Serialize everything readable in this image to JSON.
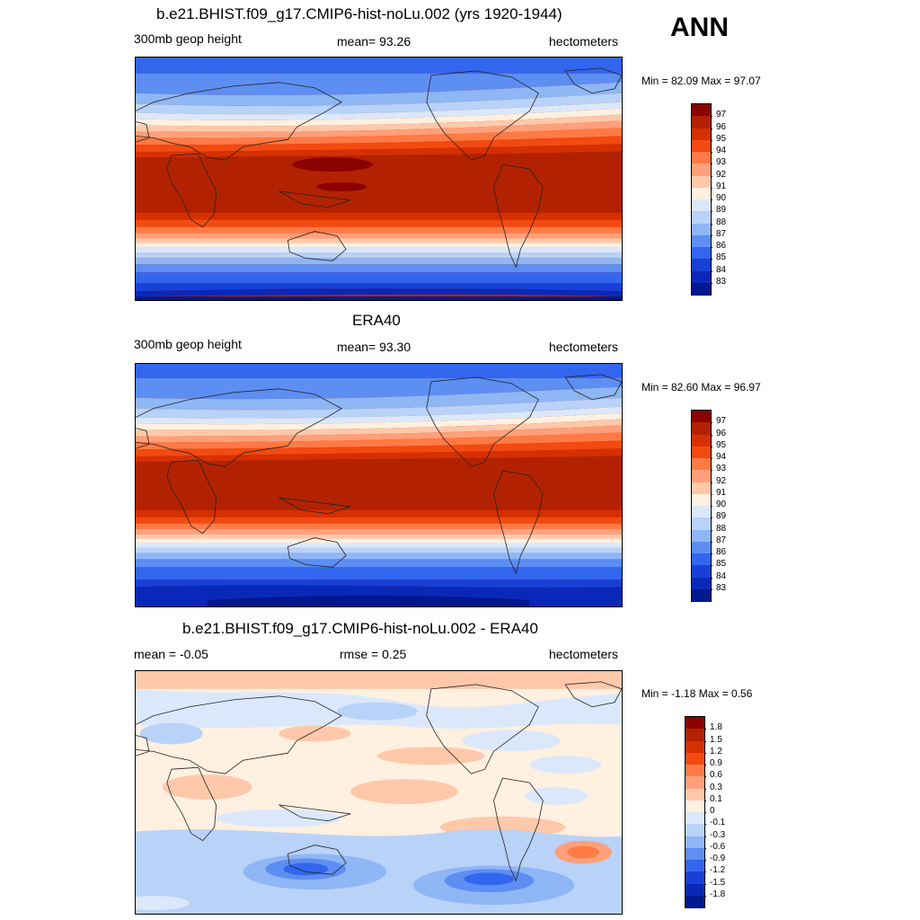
{
  "season": "ANN",
  "panels": [
    {
      "title": "b.e21.BHIST.f09_g17.CMIP6-hist-noLu.002 (yrs 1920-1944)",
      "left_label": "300mb geop height",
      "center_label": "mean=  93.26",
      "units": "hectometers",
      "minmax": "Min =  82.09 Max =  97.07",
      "colorbar": {
        "labels": [
          "97",
          "96",
          "95",
          "94",
          "93",
          "92",
          "91",
          "90",
          "89",
          "88",
          "87",
          "86",
          "85",
          "84",
          "83"
        ],
        "colors": [
          "#8b0000",
          "#b22200",
          "#d63000",
          "#f24a10",
          "#ff7a45",
          "#ffa07a",
          "#ffc8aa",
          "#fff0e0",
          "#dbe8fb",
          "#b9d2f8",
          "#8fb6f5",
          "#5d8ef2",
          "#3366ee",
          "#1840d8",
          "#0a28b8",
          "#001890"
        ]
      }
    },
    {
      "title": "ERA40",
      "left_label": "300mb geop height",
      "center_label": "mean=  93.30",
      "units": "hectometers",
      "minmax": "Min =  82.60 Max =  96.97",
      "colorbar": {
        "labels": [
          "97",
          "96",
          "95",
          "94",
          "93",
          "92",
          "91",
          "90",
          "89",
          "88",
          "87",
          "86",
          "85",
          "84",
          "83"
        ],
        "colors": [
          "#8b0000",
          "#b22200",
          "#d63000",
          "#f24a10",
          "#ff7a45",
          "#ffa07a",
          "#ffc8aa",
          "#fff0e0",
          "#dbe8fb",
          "#b9d2f8",
          "#8fb6f5",
          "#5d8ef2",
          "#3366ee",
          "#1840d8",
          "#0a28b8",
          "#001890"
        ]
      }
    },
    {
      "title": "b.e21.BHIST.f09_g17.CMIP6-hist-noLu.002 - ERA40",
      "left_label": "mean =  -0.05",
      "center_label": "rmse =   0.25",
      "units": "hectometers",
      "minmax": "Min =  -1.18 Max =   0.56",
      "colorbar": {
        "labels": [
          "1.8",
          "1.5",
          "1.2",
          "0.9",
          "0.6",
          "0.3",
          "0.1",
          "0",
          "-0.1",
          "-0.3",
          "-0.6",
          "-0.9",
          "-1.2",
          "-1.5",
          "-1.8"
        ],
        "colors": [
          "#8b0000",
          "#b22200",
          "#d63000",
          "#f24a10",
          "#ff7a45",
          "#ffa07a",
          "#ffc8aa",
          "#fff0e0",
          "#dbe8fb",
          "#b9d2f8",
          "#8fb6f5",
          "#5d8ef2",
          "#3366ee",
          "#1840d8",
          "#0a28b8",
          "#001890"
        ]
      }
    }
  ]
}
